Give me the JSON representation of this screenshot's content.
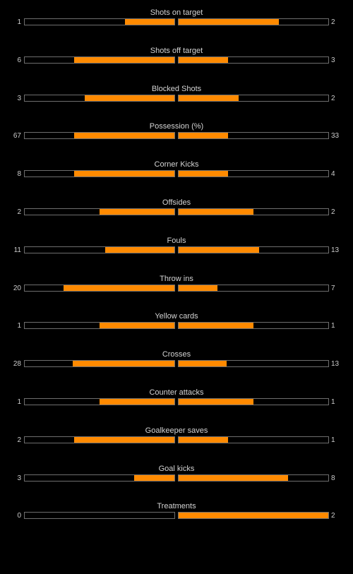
{
  "colors": {
    "background": "#000000",
    "bar_fill": "#ff8a00",
    "bar_border": "#6e6e6e",
    "text": "#cccccc"
  },
  "stats": [
    {
      "label": "Shots on target",
      "home": "1",
      "away": "2",
      "home_fill": 0.33,
      "away_fill": 0.67
    },
    {
      "label": "Shots off target",
      "home": "6",
      "away": "3",
      "home_fill": 0.67,
      "away_fill": 0.33
    },
    {
      "label": "Blocked Shots",
      "home": "3",
      "away": "2",
      "home_fill": 0.6,
      "away_fill": 0.4
    },
    {
      "label": "Possession (%)",
      "home": "67",
      "away": "33",
      "home_fill": 0.67,
      "away_fill": 0.33
    },
    {
      "label": "Corner Kicks",
      "home": "8",
      "away": "4",
      "home_fill": 0.67,
      "away_fill": 0.33
    },
    {
      "label": "Offsides",
      "home": "2",
      "away": "2",
      "home_fill": 0.5,
      "away_fill": 0.5
    },
    {
      "label": "Fouls",
      "home": "11",
      "away": "13",
      "home_fill": 0.46,
      "away_fill": 0.54
    },
    {
      "label": "Throw ins",
      "home": "20",
      "away": "7",
      "home_fill": 0.74,
      "away_fill": 0.26
    },
    {
      "label": "Yellow cards",
      "home": "1",
      "away": "1",
      "home_fill": 0.5,
      "away_fill": 0.5
    },
    {
      "label": "Crosses",
      "home": "28",
      "away": "13",
      "home_fill": 0.68,
      "away_fill": 0.32
    },
    {
      "label": "Counter attacks",
      "home": "1",
      "away": "1",
      "home_fill": 0.5,
      "away_fill": 0.5
    },
    {
      "label": "Goalkeeper saves",
      "home": "2",
      "away": "1",
      "home_fill": 0.67,
      "away_fill": 0.33
    },
    {
      "label": "Goal kicks",
      "home": "3",
      "away": "8",
      "home_fill": 0.27,
      "away_fill": 0.73
    },
    {
      "label": "Treatments",
      "home": "0",
      "away": "2",
      "home_fill": 0.0,
      "away_fill": 1.0
    }
  ]
}
